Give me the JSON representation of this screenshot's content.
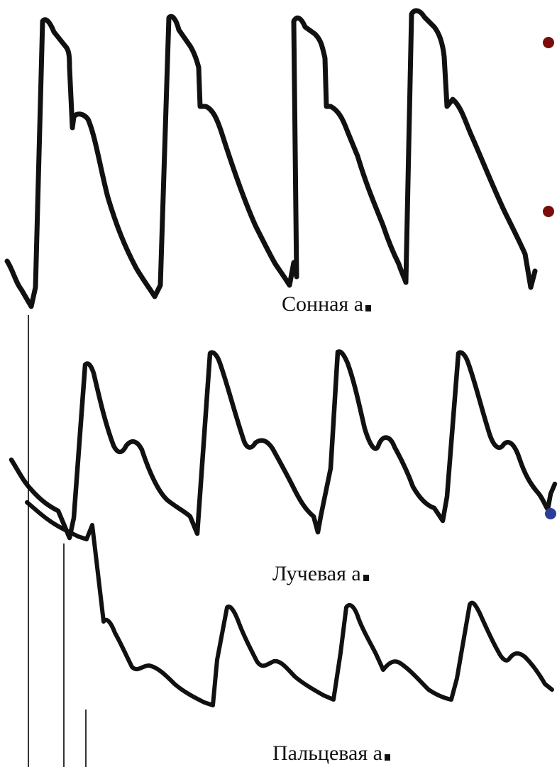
{
  "labels": {
    "carotid": "Сонная а",
    "radial": "Лучевая а",
    "finger": "Пальцевая а"
  },
  "colors": {
    "trace": "#111111",
    "bullet_dark_red": "#7a0c0c",
    "dot_blue": "#2a3d9a"
  }
}
